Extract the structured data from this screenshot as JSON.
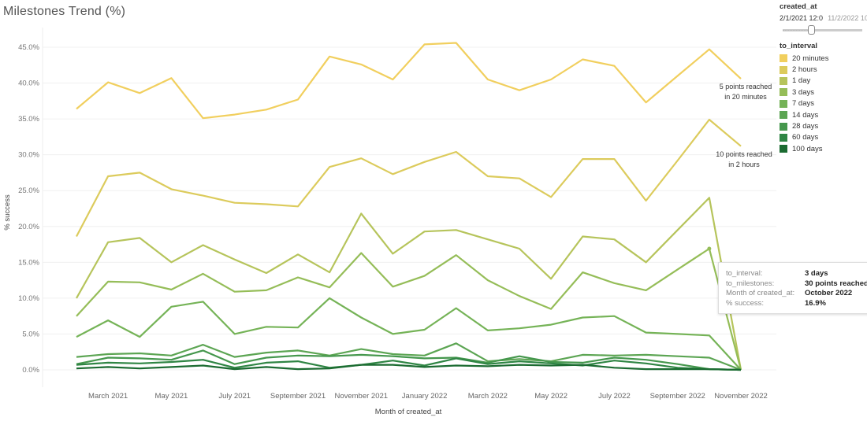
{
  "title": "Milestones Trend (%)",
  "filter": {
    "label": "created_at",
    "range_start": "2/1/2021 12:0",
    "range_end": "11/2/2022 10"
  },
  "legend": {
    "title": "to_interval",
    "items": [
      {
        "label": "20 minutes",
        "color": "#f1cf5e"
      },
      {
        "label": "2 hours",
        "color": "#dccb5c"
      },
      {
        "label": "1 day",
        "color": "#b6c45b"
      },
      {
        "label": "3 days",
        "color": "#95bd58"
      },
      {
        "label": "7 days",
        "color": "#75b357"
      },
      {
        "label": "14 days",
        "color": "#5ca553"
      },
      {
        "label": "28 days",
        "color": "#45974d"
      },
      {
        "label": "60 days",
        "color": "#2f8544"
      },
      {
        "label": "100 days",
        "color": "#1b6b31"
      }
    ]
  },
  "annotations": [
    {
      "line1": "5 points reached",
      "line2": "in 20 minutes"
    },
    {
      "line1": "10 points reached",
      "line2": "in 2 hours"
    }
  ],
  "tooltip": {
    "rows": [
      {
        "key": "to_interval:",
        "value": "3 days"
      },
      {
        "key": "to_milestones:",
        "value": "30 points reached"
      },
      {
        "key": "Month of created_at:",
        "value": "October 2022"
      },
      {
        "key": "% success:",
        "value": "16.9%"
      }
    ]
  },
  "chart_data": {
    "type": "line",
    "title": "Milestones Trend (%)",
    "xlabel": "Month of created_at",
    "ylabel": "% success",
    "ylim": [
      0,
      45
    ],
    "yticks": [
      "0.0%",
      "5.0%",
      "10.0%",
      "15.0%",
      "20.0%",
      "25.0%",
      "30.0%",
      "35.0%",
      "40.0%",
      "45.0%"
    ],
    "xticks": [
      "March 2021",
      "May 2021",
      "July 2021",
      "September 2021",
      "November 2021",
      "January 2022",
      "March 2022",
      "May 2022",
      "July 2022",
      "September 2022",
      "November 2022"
    ],
    "x": [
      "2021-02",
      "2021-03",
      "2021-04",
      "2021-05",
      "2021-06",
      "2021-07",
      "2021-08",
      "2021-09",
      "2021-10",
      "2021-11",
      "2021-12",
      "2022-01",
      "2022-02",
      "2022-03",
      "2022-04",
      "2022-05",
      "2022-06",
      "2022-07",
      "2022-08",
      "2022-09",
      "2022-10",
      "2022-11"
    ],
    "grid": true,
    "legend_position": "right",
    "series": [
      {
        "name": "20 minutes",
        "values": [
          36.4,
          40.1,
          38.6,
          40.7,
          35.1,
          35.6,
          36.3,
          37.7,
          43.7,
          42.6,
          40.5,
          45.4,
          45.6,
          40.5,
          39.0,
          40.5,
          43.3,
          42.4,
          37.3,
          41.0,
          44.7,
          40.6
        ]
      },
      {
        "name": "2 hours",
        "values": [
          18.6,
          27.0,
          27.5,
          25.2,
          24.3,
          23.3,
          23.1,
          22.8,
          28.3,
          29.5,
          27.3,
          29.0,
          30.4,
          27.0,
          26.7,
          24.1,
          29.4,
          29.4,
          23.6,
          29.2,
          34.9,
          31.2
        ]
      },
      {
        "name": "1 day",
        "values": [
          10.0,
          17.8,
          18.4,
          15.0,
          17.4,
          15.4,
          13.5,
          16.1,
          13.6,
          21.8,
          16.2,
          19.3,
          19.5,
          18.2,
          16.9,
          12.7,
          18.6,
          18.2,
          15.0,
          19.5,
          24.0,
          0
        ]
      },
      {
        "name": "3 days",
        "values": [
          7.5,
          12.3,
          12.2,
          11.2,
          13.4,
          10.9,
          11.1,
          12.9,
          11.5,
          16.3,
          11.6,
          13.1,
          16.0,
          12.5,
          10.3,
          8.5,
          13.6,
          12.1,
          11.1,
          14.0,
          16.9,
          0
        ]
      },
      {
        "name": "7 days",
        "values": [
          4.6,
          6.9,
          4.6,
          8.8,
          9.5,
          5.0,
          6.0,
          5.9,
          10.0,
          7.3,
          5.0,
          5.6,
          8.6,
          5.5,
          5.8,
          6.3,
          7.3,
          7.5,
          5.2,
          5.0,
          4.8,
          0
        ]
      },
      {
        "name": "14 days",
        "values": [
          1.8,
          2.2,
          2.3,
          2.0,
          3.5,
          1.8,
          2.4,
          2.7,
          2.0,
          2.9,
          2.2,
          2.0,
          3.7,
          1.2,
          1.5,
          1.2,
          2.1,
          2.0,
          2.1,
          1.9,
          1.7,
          0
        ]
      },
      {
        "name": "28 days",
        "values": [
          0.8,
          1.7,
          1.6,
          1.4,
          2.7,
          0.8,
          1.7,
          2.0,
          1.9,
          2.1,
          1.9,
          1.6,
          1.7,
          1.0,
          1.9,
          1.1,
          1.0,
          1.7,
          1.4,
          0.8,
          0.1,
          0
        ]
      },
      {
        "name": "60 days",
        "values": [
          0.7,
          1.0,
          0.9,
          1.1,
          1.4,
          0.3,
          1.0,
          1.2,
          0.3,
          0.7,
          1.3,
          0.6,
          1.6,
          0.8,
          1.2,
          0.9,
          0.6,
          1.3,
          0.9,
          0.3,
          0.1,
          0
        ]
      },
      {
        "name": "100 days",
        "values": [
          0.2,
          0.4,
          0.2,
          0.4,
          0.6,
          0.1,
          0.4,
          0.1,
          0.2,
          0.7,
          0.7,
          0.4,
          0.6,
          0.5,
          0.7,
          0.6,
          0.7,
          0.3,
          0.1,
          0.1,
          0.1,
          0
        ]
      }
    ]
  }
}
